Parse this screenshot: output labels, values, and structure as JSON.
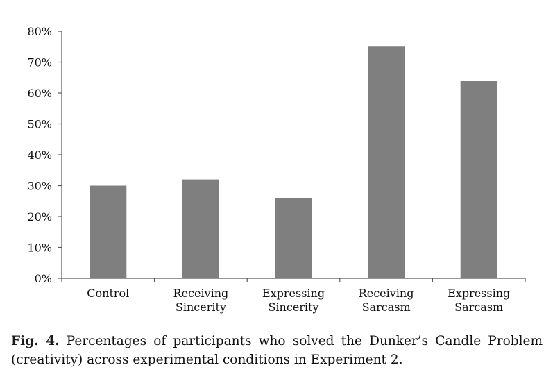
{
  "chart_data": {
    "type": "bar",
    "categories": [
      [
        "Control"
      ],
      [
        "Receiving",
        "Sincerity"
      ],
      [
        "Expressing",
        "Sincerity"
      ],
      [
        "Receiving",
        "Sarcasm"
      ],
      [
        "Expressing",
        "Sarcasm"
      ]
    ],
    "values": [
      30,
      32,
      26,
      75,
      64
    ],
    "ylim": [
      0,
      80
    ],
    "yticks": [
      0,
      10,
      20,
      30,
      40,
      50,
      60,
      70,
      80
    ],
    "ytick_labels": [
      "0%",
      "10%",
      "20%",
      "30%",
      "40%",
      "50%",
      "60%",
      "70%",
      "80%"
    ],
    "bar_color": "#7f7f80",
    "axis_color": "#595959",
    "grid": false,
    "legend": "none"
  },
  "caption": {
    "label": "Fig. 4.",
    "text": " Percentages of participants who solved the Dunker’s Candle Problem (creativity) across experimental conditions in Experiment 2."
  }
}
